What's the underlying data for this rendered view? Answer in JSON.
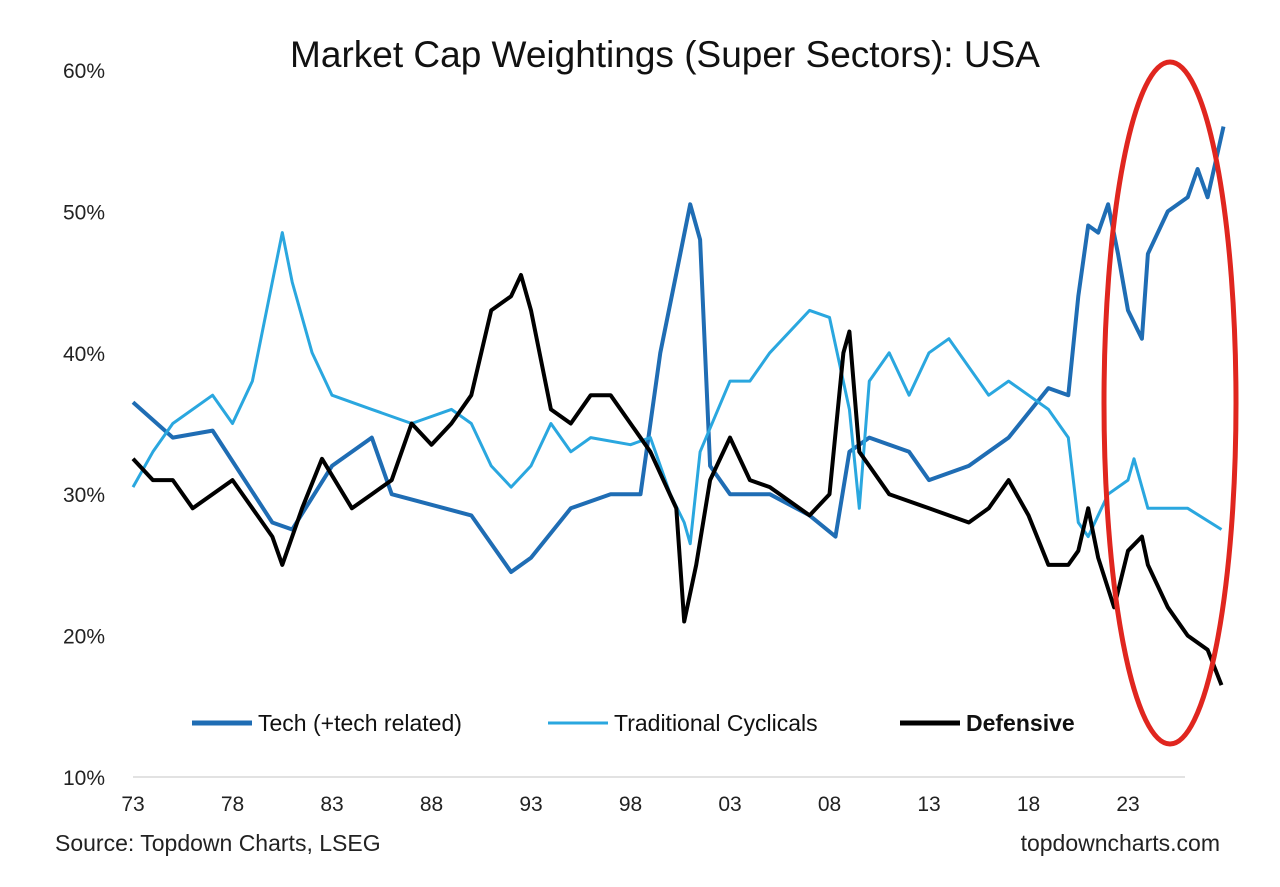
{
  "chart_data": {
    "type": "line",
    "title": "Market Cap Weightings (Super Sectors): USA",
    "source": "Source: Topdown Charts, LSEG",
    "watermark": "topdowncharts.com",
    "ylim": [
      10,
      60
    ],
    "yticks": [
      "10%",
      "20%",
      "30%",
      "40%",
      "50%",
      "60%"
    ],
    "ytick_values": [
      10,
      20,
      30,
      40,
      50,
      60
    ],
    "xlim": [
      1973,
      2026
    ],
    "xticks": [
      "73",
      "78",
      "83",
      "88",
      "93",
      "98",
      "03",
      "08",
      "13",
      "18",
      "23"
    ],
    "xtick_values": [
      1973,
      1978,
      1983,
      1988,
      1993,
      1998,
      2003,
      2008,
      2013,
      2018,
      2023
    ],
    "grid": false,
    "legend_placement": "bottom",
    "annotation": "red ellipse highlighting 2022-2025",
    "series": [
      {
        "name": "Tech (+tech related)",
        "color": "#1f6db4",
        "bold": false,
        "x": [
          1973,
          1975,
          1977,
          1980,
          1981,
          1983,
          1985,
          1986,
          1990,
          1992,
          1993,
          1995,
          1997,
          1998.5,
          1999.5,
          2000.5,
          2001,
          2001.5,
          2002,
          2003,
          2005,
          2007,
          2008.3,
          2009,
          2010,
          2012,
          2013,
          2015,
          2017,
          2019,
          2020,
          2020.5,
          2021,
          2021.5,
          2022,
          2022.5,
          2023,
          2023.7,
          2024,
          2025,
          2026,
          2026.5,
          2027,
          2027.8
        ],
        "y": [
          36.5,
          34,
          34.5,
          28,
          27.5,
          32,
          34,
          30,
          28.5,
          24.5,
          25.5,
          29,
          30,
          30,
          40,
          47,
          50.5,
          48,
          32,
          30,
          30,
          28.5,
          27,
          33,
          34,
          33,
          31,
          32,
          34,
          37.5,
          37,
          44,
          49,
          48.5,
          50.5,
          47,
          43,
          41,
          47,
          50,
          51,
          53,
          51,
          56
        ]
      },
      {
        "name": "Traditional Cyclicals",
        "color": "#2aa7df",
        "bold": false,
        "x": [
          1973,
          1974,
          1975,
          1977,
          1978,
          1979,
          1980,
          1980.5,
          1981,
          1982,
          1983,
          1985,
          1987,
          1989,
          1990,
          1991,
          1992,
          1993,
          1994,
          1995,
          1996,
          1998,
          1999,
          2000,
          2000.7,
          2001,
          2001.5,
          2003,
          2004,
          2005,
          2007,
          2008,
          2009,
          2009.5,
          2010,
          2011,
          2012,
          2013,
          2014,
          2016,
          2017,
          2018,
          2019,
          2020,
          2020.5,
          2021,
          2022,
          2023,
          2023.3,
          2024,
          2025,
          2026,
          2027.7
        ],
        "y": [
          30.5,
          33,
          35,
          37,
          35,
          38,
          45,
          48.5,
          45,
          40,
          37,
          36,
          35,
          36,
          35,
          32,
          30.5,
          32,
          35,
          33,
          34,
          33.5,
          34,
          30,
          28,
          26.5,
          33,
          38,
          38,
          40,
          43,
          42.5,
          36,
          29,
          38,
          40,
          37,
          40,
          41,
          37,
          38,
          37,
          36,
          34,
          28,
          27,
          30,
          31,
          32.5,
          29,
          29,
          29,
          27.5
        ]
      },
      {
        "name": "Defensive",
        "color": "#000000",
        "bold": true,
        "x": [
          1973,
          1974,
          1975,
          1976,
          1978,
          1979,
          1980,
          1980.5,
          1981.5,
          1982.5,
          1984,
          1985,
          1986,
          1987,
          1988,
          1989,
          1990,
          1991,
          1992,
          1992.5,
          1993,
          1994,
          1995,
          1996,
          1997,
          1998,
          1999,
          2000.3,
          2000.7,
          2001.3,
          2002,
          2003,
          2004,
          2005,
          2006,
          2007,
          2008,
          2008.7,
          2009,
          2009.5,
          2010,
          2011,
          2013,
          2015,
          2016,
          2017,
          2018,
          2019,
          2020,
          2020.5,
          2021,
          2021.5,
          2022.3,
          2023,
          2023.7,
          2024,
          2025,
          2026,
          2027,
          2027.7
        ],
        "y": [
          32.5,
          31,
          31,
          29,
          31,
          29,
          27,
          25,
          29,
          32.5,
          29,
          30,
          31,
          35,
          33.5,
          35,
          37,
          43,
          44,
          45.5,
          43,
          36,
          35,
          37,
          37,
          35,
          33,
          29,
          21,
          25,
          31,
          34,
          31,
          30.5,
          29.5,
          28.5,
          30,
          40,
          41.5,
          33,
          32,
          30,
          29,
          28,
          29,
          31,
          28.5,
          25,
          25,
          26,
          29,
          25.5,
          22,
          26,
          27,
          25,
          22,
          20,
          19,
          16.5
        ]
      }
    ]
  }
}
